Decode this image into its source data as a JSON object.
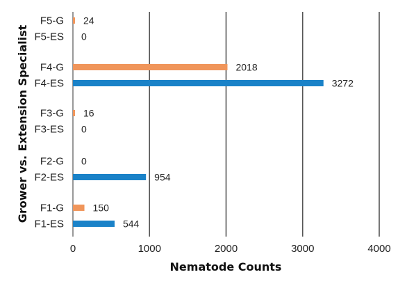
{
  "chart_data": {
    "type": "bar",
    "orientation": "horizontal",
    "title": "",
    "xlabel": "Nematode Counts",
    "ylabel": "Grower vs. Extension Specialist",
    "xlim": [
      0,
      4000
    ],
    "xticks": [
      "0",
      "1000",
      "2000",
      "3000",
      "4000"
    ],
    "grid": "vertical",
    "legend": "none",
    "groups": [
      {
        "bars": [
          {
            "label": "F5-G",
            "value": 24,
            "color": "#F0955A"
          },
          {
            "label": "F5-ES",
            "value": 0,
            "color": "#1A82C8"
          }
        ]
      },
      {
        "bars": [
          {
            "label": "F4-G",
            "value": 2018,
            "color": "#F0955A"
          },
          {
            "label": "F4-ES",
            "value": 3272,
            "color": "#1A82C8"
          }
        ]
      },
      {
        "bars": [
          {
            "label": "F3-G",
            "value": 16,
            "color": "#F0955A"
          },
          {
            "label": "F3-ES",
            "value": 0,
            "color": "#1A82C8"
          }
        ]
      },
      {
        "bars": [
          {
            "label": "F2-G",
            "value": 0,
            "color": "#F0955A"
          },
          {
            "label": "F2-ES",
            "value": 954,
            "color": "#1A82C8"
          }
        ]
      },
      {
        "bars": [
          {
            "label": "F1-G",
            "value": 150,
            "color": "#F0955A"
          },
          {
            "label": "F1-ES",
            "value": 544,
            "color": "#1A82C8"
          }
        ]
      }
    ]
  }
}
